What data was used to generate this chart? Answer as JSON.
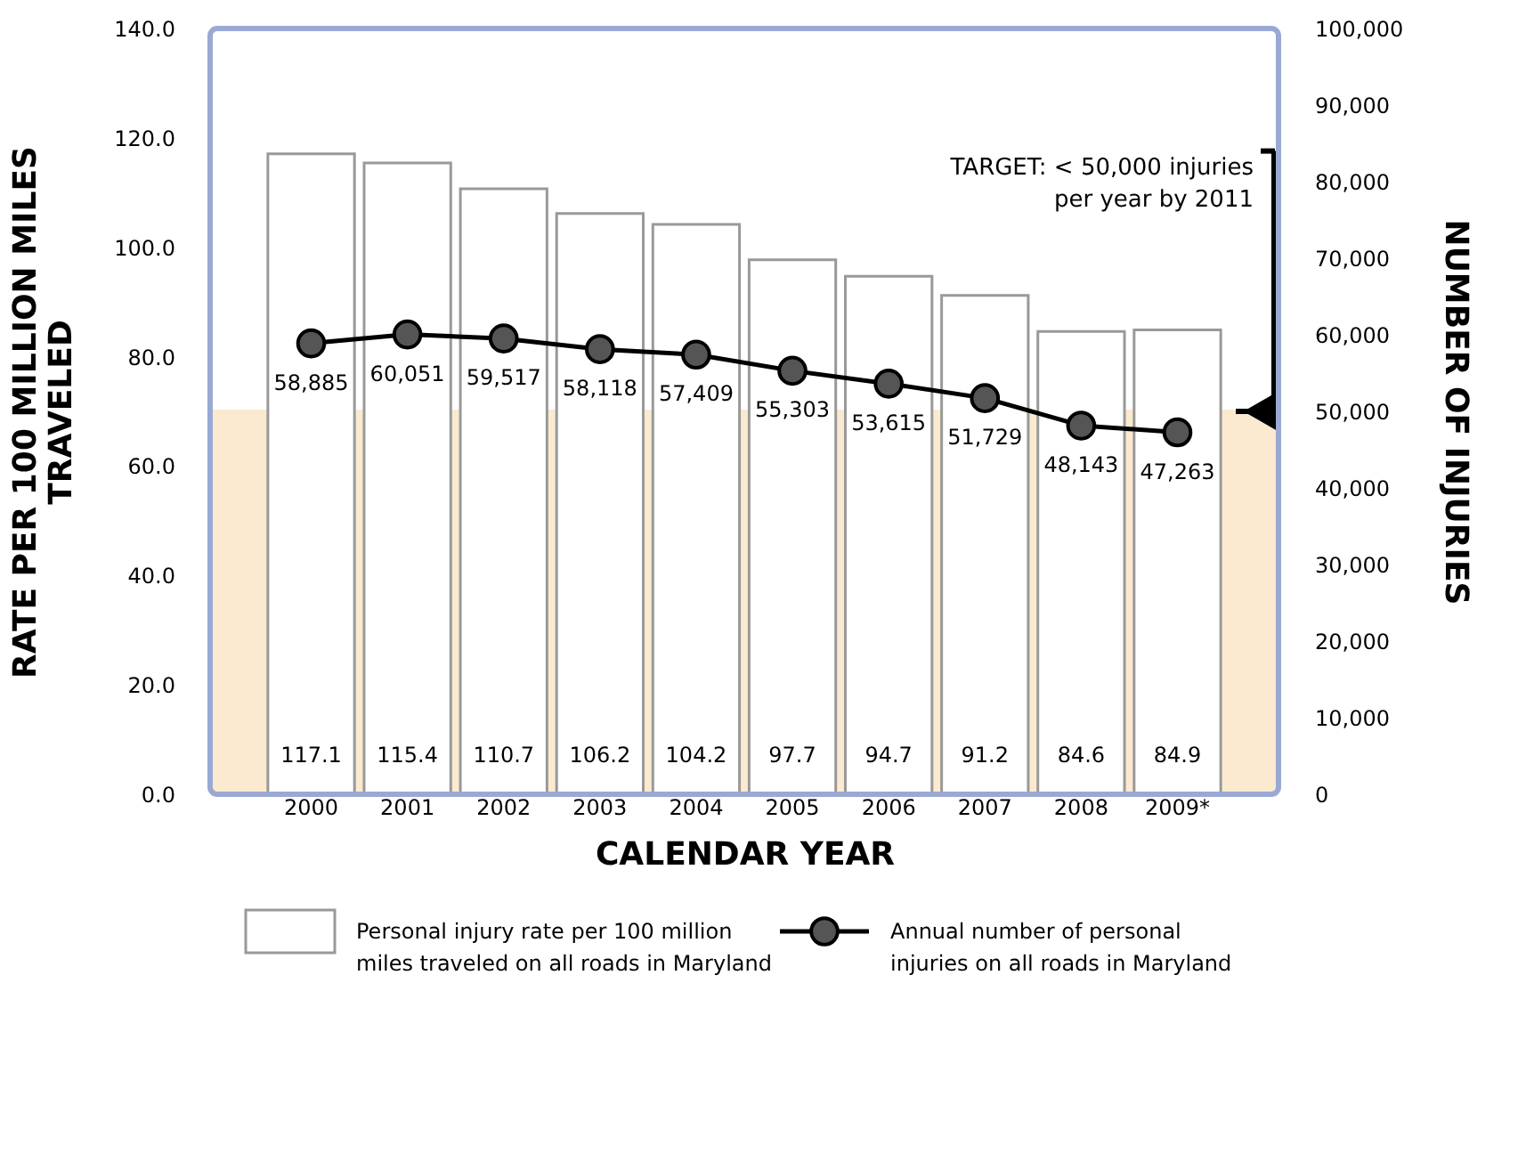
{
  "chart_data": {
    "type": "bar",
    "xlabel": "CALENDAR YEAR",
    "ylabel": "RATE PER 100 MILLION MILES TRAVELED",
    "y2label": "NUMBER OF INJURIES",
    "categories": [
      "2000",
      "2001",
      "2002",
      "2003",
      "2004",
      "2005",
      "2006",
      "2007",
      "2008",
      "2009*"
    ],
    "series": [
      {
        "name": "Personal injury rate per 100 million\nmiles traveled on all roads in Maryland",
        "type": "bar",
        "color": "#ffffff",
        "values": [
          117.1,
          115.4,
          110.7,
          106.2,
          104.2,
          97.7,
          94.7,
          91.2,
          84.6,
          84.9
        ]
      },
      {
        "name": "Annual number of personal\ninjuries on all roads in Maryland",
        "type": "line",
        "axis": "y2",
        "color": "#000000",
        "values": [
          58885,
          60051,
          59517,
          58118,
          57409,
          55303,
          53615,
          51729,
          48143,
          47263
        ],
        "value_labels": [
          "58,885",
          "60,051",
          "59,517",
          "58,118",
          "57,409",
          "55,303",
          "53,615",
          "51,729",
          "48,143",
          "47,263"
        ]
      }
    ],
    "data_labels": true,
    "marker": "circle",
    "line_style": "solid",
    "grid": false,
    "legend": "bottom",
    "ylim": [
      0,
      140
    ],
    "yticks": [
      {
        "value": 0,
        "label": "0.0"
      },
      {
        "value": 20,
        "label": "20.0"
      },
      {
        "value": 40,
        "label": "40.0"
      },
      {
        "value": 60,
        "label": "60.0"
      },
      {
        "value": 80,
        "label": "80.0"
      },
      {
        "value": 100,
        "label": "100.0"
      },
      {
        "value": 120,
        "label": "120.0"
      },
      {
        "value": 140,
        "label": "140.0"
      }
    ],
    "y2lim": [
      0,
      100000
    ],
    "y2ticks": [
      0,
      {
        "value": 10000,
        "label": "10,000"
      },
      {
        "value": 20000,
        "label": "20,000"
      },
      {
        "value": 30000,
        "label": "30,000"
      },
      {
        "value": 40000,
        "label": "40,000"
      },
      {
        "value": 50000,
        "label": "50,000"
      },
      {
        "value": 60000,
        "label": "60,000"
      },
      {
        "value": 70000,
        "label": "70,000"
      },
      {
        "value": 80000,
        "label": "80,000"
      },
      {
        "value": 90000,
        "label": "90,000"
      },
      {
        "value": 100000,
        "label": "100,000"
      }
    ],
    "bands": [
      {
        "axis": "y2",
        "from": 0,
        "to": 50000,
        "color": "#fbead0"
      }
    ],
    "ref_lines": [
      {
        "axis": "y2",
        "value": 50000,
        "label": "TARGET: < 50,000 injuries\nper year by 2011"
      }
    ]
  }
}
